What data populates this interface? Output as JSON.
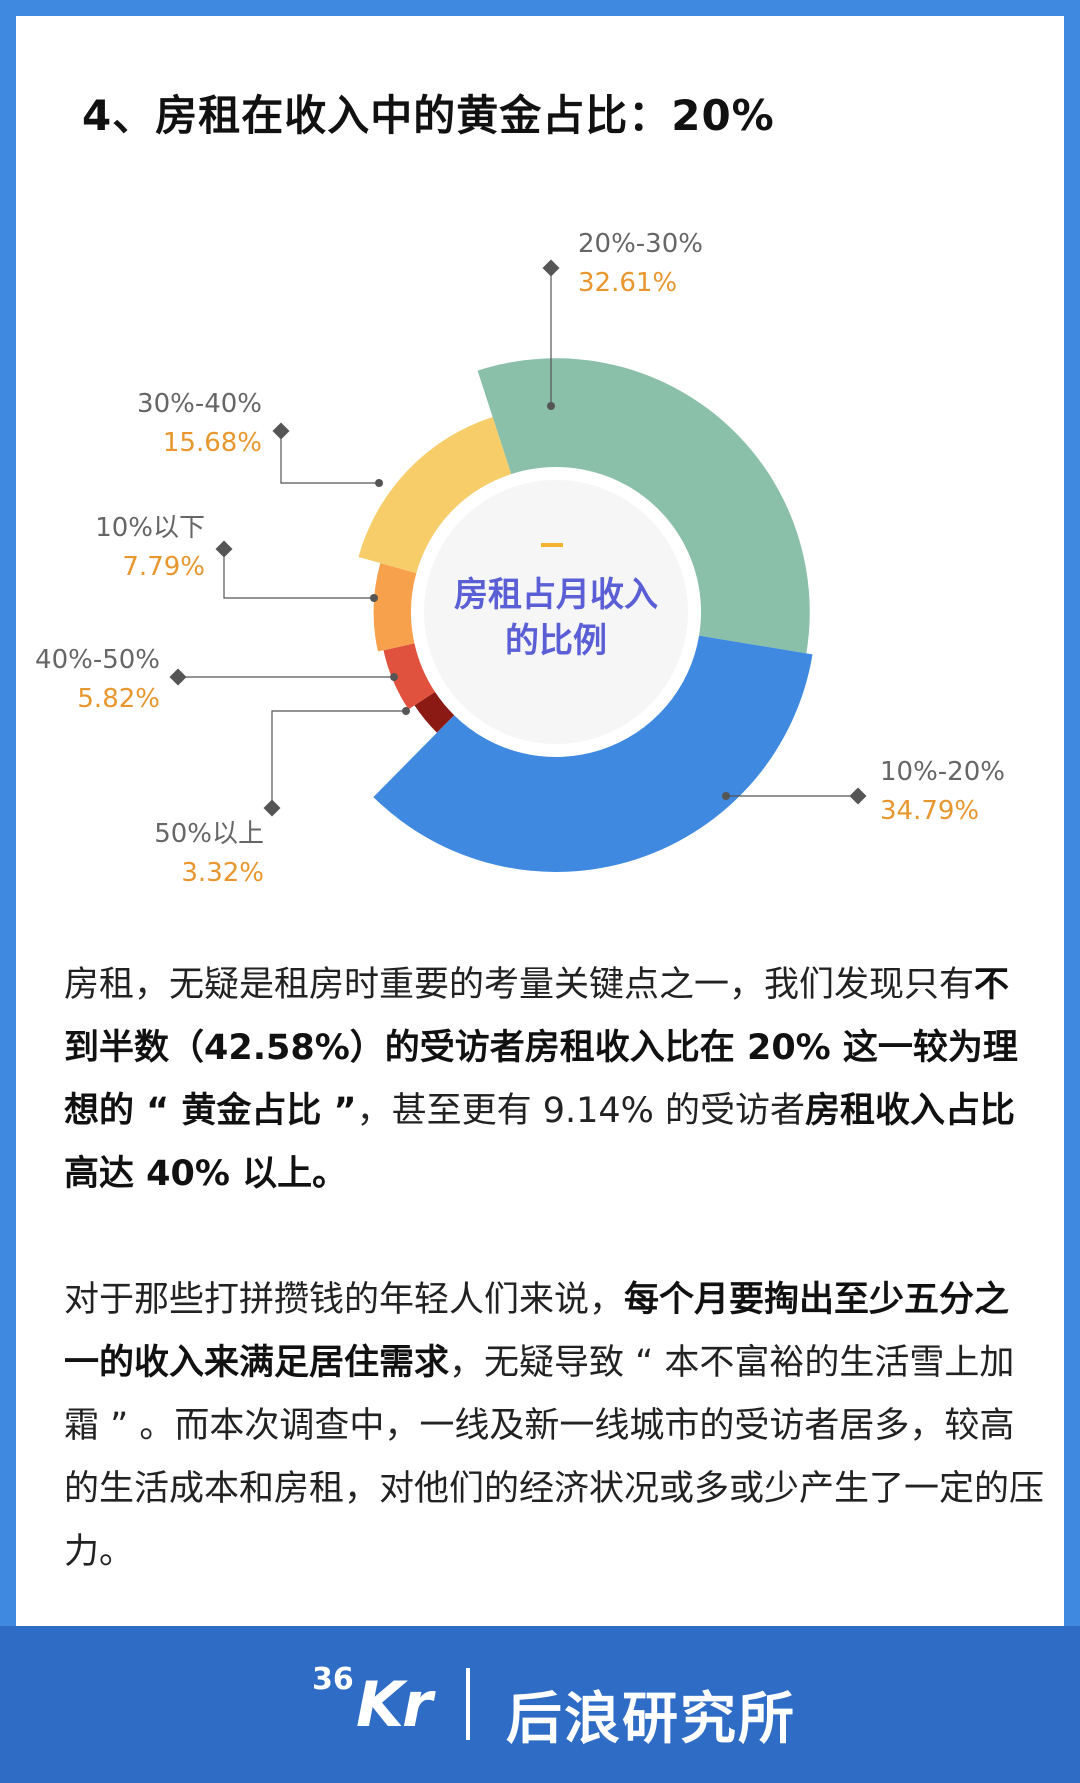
{
  "title": "4、房租在收入中的黄金占比：20%",
  "chart_data": {
    "type": "pie",
    "center_label": [
      "房租占月收入",
      "的比例"
    ],
    "slices": [
      {
        "name": "20%-30%",
        "value": 32.61,
        "value_label": "32.61%",
        "color": "#8abfaa"
      },
      {
        "name": "10%-20%",
        "value": 34.79,
        "value_label": "34.79%",
        "color": "#3f8ae0"
      },
      {
        "name": "50%以上",
        "value": 3.32,
        "value_label": "3.32%",
        "color": "#8b1a14"
      },
      {
        "name": "40%-50%",
        "value": 5.82,
        "value_label": "5.82%",
        "color": "#e0523e"
      },
      {
        "name": "10%以下",
        "value": 7.79,
        "value_label": "7.79%",
        "color": "#f7a14c"
      },
      {
        "name": "30%-40%",
        "value": 15.68,
        "value_label": "15.68%",
        "color": "#f7cd6a"
      }
    ]
  },
  "paragraph1": {
    "t1": "房租，无疑是租房时重要的考量关键点之一，我们发现只有",
    "b1": "不到半数（42.58%）的受访者房租收入比在 20% 这一较为理想的 “ 黄金占比 ”",
    "t2": "，甚至更有 9.14% 的受访者",
    "b2": "房租收入占比高达 40% 以上。"
  },
  "paragraph2": {
    "t1": "对于那些打拼攒钱的年轻人们来说，",
    "b1": "每个月要掏出至少五分之一的收入来满足居住需求",
    "t2": "，无疑导致 “ 本不富裕的生活雪上加霜 ” 。而本次调查中，一线及新一线城市的受访者居多，较高的生活成本和房租，对他们的经济状况或多或少产生了一定的压力。"
  },
  "footer": {
    "logo_num": "36",
    "logo_kr": "Kr",
    "brand": "后浪研究所"
  }
}
